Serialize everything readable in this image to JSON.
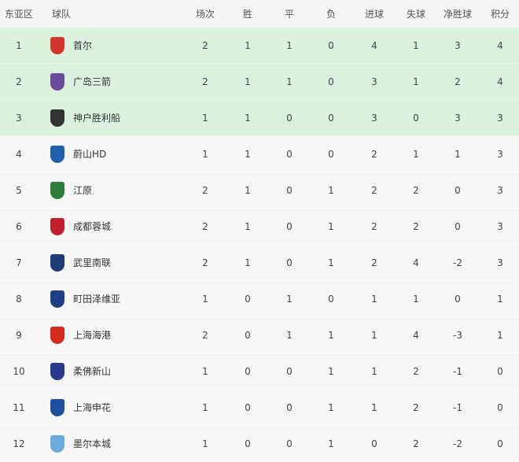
{
  "headers": {
    "rank": "东亚区",
    "team": "球队",
    "played": "场次",
    "won": "胜",
    "drawn": "平",
    "lost": "负",
    "gf": "进球",
    "ga": "失球",
    "gd": "净胜球",
    "pts": "积分"
  },
  "colors": {
    "qualified_row": "#dcf2de",
    "normal_row": "#f7f7f7",
    "header": "#f5f5f5"
  },
  "rows": [
    {
      "rank": "1",
      "team": "首尔",
      "logo": "fc-seoul-logo",
      "logo_color": "#d2352b",
      "played": "2",
      "won": "1",
      "drawn": "1",
      "lost": "0",
      "gf": "4",
      "ga": "1",
      "gd": "3",
      "pts": "4",
      "highlight": true
    },
    {
      "rank": "2",
      "team": "广岛三箭",
      "logo": "sanfrecce-hiroshima-logo",
      "logo_color": "#6b4a9c",
      "played": "2",
      "won": "1",
      "drawn": "1",
      "lost": "0",
      "gf": "3",
      "ga": "1",
      "gd": "2",
      "pts": "4",
      "highlight": true
    },
    {
      "rank": "3",
      "team": "神户胜利船",
      "logo": "vissel-kobe-logo",
      "logo_color": "#333333",
      "played": "1",
      "won": "1",
      "drawn": "0",
      "lost": "0",
      "gf": "3",
      "ga": "0",
      "gd": "3",
      "pts": "3",
      "highlight": true
    },
    {
      "rank": "4",
      "team": "蔚山HD",
      "logo": "ulsan-hd-logo",
      "logo_color": "#1f5fae",
      "played": "1",
      "won": "1",
      "drawn": "0",
      "lost": "0",
      "gf": "2",
      "ga": "1",
      "gd": "1",
      "pts": "3",
      "highlight": false
    },
    {
      "rank": "5",
      "team": "江原",
      "logo": "gangwon-logo",
      "logo_color": "#2e7d3a",
      "played": "2",
      "won": "1",
      "drawn": "0",
      "lost": "1",
      "gf": "2",
      "ga": "2",
      "gd": "0",
      "pts": "3",
      "highlight": false
    },
    {
      "rank": "6",
      "team": "成都蓉城",
      "logo": "chengdu-rongcheng-logo",
      "logo_color": "#c0212c",
      "played": "2",
      "won": "1",
      "drawn": "0",
      "lost": "1",
      "gf": "2",
      "ga": "2",
      "gd": "0",
      "pts": "3",
      "highlight": false
    },
    {
      "rank": "7",
      "team": "武里南联",
      "logo": "buriram-united-logo",
      "logo_color": "#1e3a78",
      "played": "2",
      "won": "1",
      "drawn": "0",
      "lost": "1",
      "gf": "2",
      "ga": "4",
      "gd": "-2",
      "pts": "3",
      "highlight": false
    },
    {
      "rank": "8",
      "team": "町田泽维亚",
      "logo": "machida-zelvia-logo",
      "logo_color": "#1d3f86",
      "played": "1",
      "won": "0",
      "drawn": "1",
      "lost": "0",
      "gf": "1",
      "ga": "1",
      "gd": "0",
      "pts": "1",
      "highlight": false
    },
    {
      "rank": "9",
      "team": "上海海港",
      "logo": "shanghai-port-logo",
      "logo_color": "#d42a22",
      "played": "2",
      "won": "0",
      "drawn": "1",
      "lost": "1",
      "gf": "1",
      "ga": "4",
      "gd": "-3",
      "pts": "1",
      "highlight": false
    },
    {
      "rank": "10",
      "team": "柔佛新山",
      "logo": "johor-darul-tazim-logo",
      "logo_color": "#2a3b8f",
      "played": "1",
      "won": "0",
      "drawn": "0",
      "lost": "1",
      "gf": "1",
      "ga": "2",
      "gd": "-1",
      "pts": "0",
      "highlight": false
    },
    {
      "rank": "11",
      "team": "上海申花",
      "logo": "shanghai-shenhua-logo",
      "logo_color": "#1c4fa0",
      "played": "1",
      "won": "0",
      "drawn": "0",
      "lost": "1",
      "gf": "1",
      "ga": "2",
      "gd": "-1",
      "pts": "0",
      "highlight": false
    },
    {
      "rank": "12",
      "team": "墨尔本城",
      "logo": "melbourne-city-logo",
      "logo_color": "#6cabdd",
      "played": "1",
      "won": "0",
      "drawn": "0",
      "lost": "1",
      "gf": "0",
      "ga": "2",
      "gd": "-2",
      "pts": "0",
      "highlight": false
    }
  ]
}
